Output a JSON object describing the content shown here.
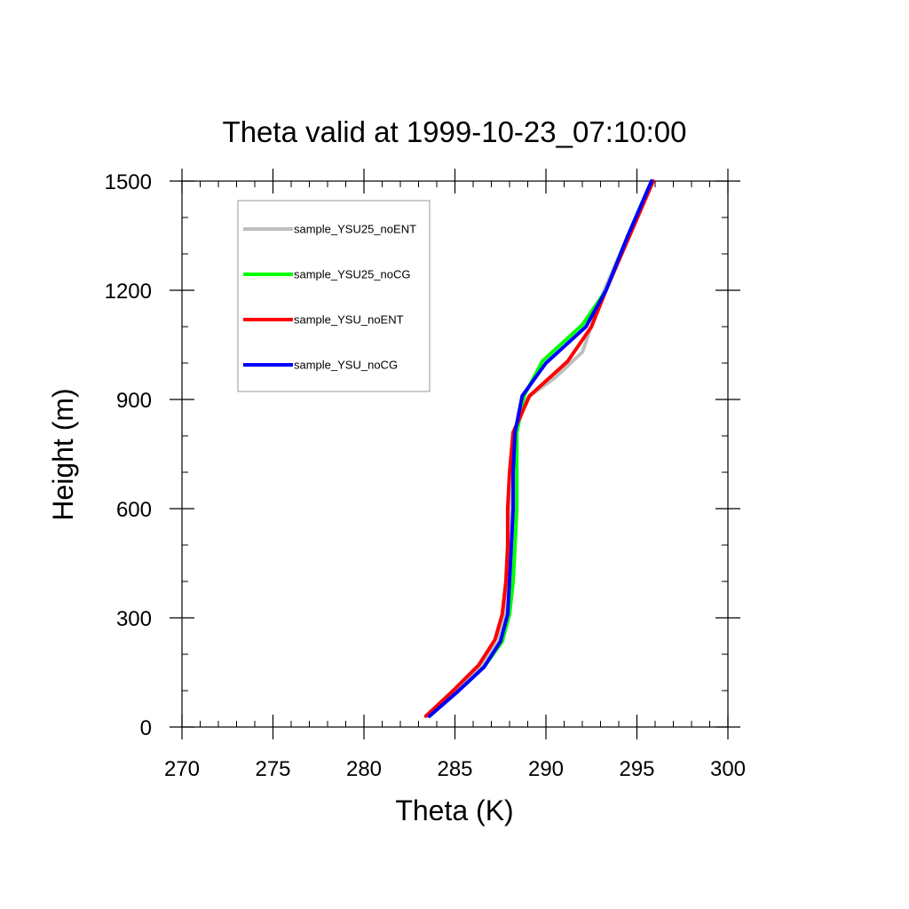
{
  "chart_data": {
    "type": "line",
    "title": "Theta valid at 1999-10-23_07:10:00",
    "xlabel": "Theta (K)",
    "ylabel": "Height (m)",
    "xlim": [
      270,
      300
    ],
    "ylim": [
      0,
      1500
    ],
    "xticks": [
      270,
      275,
      280,
      285,
      290,
      295,
      300
    ],
    "yticks": [
      0,
      300,
      600,
      900,
      1200,
      1500
    ],
    "x_minor_step": 1,
    "y_minor_step": 100,
    "grid": false,
    "legend_position": "top-left",
    "series": [
      {
        "name": "sample_YSU25_noENT",
        "color": "#bebebe",
        "points": [
          [
            283.5,
            30
          ],
          [
            285.0,
            95
          ],
          [
            286.4,
            165
          ],
          [
            287.4,
            235
          ],
          [
            287.7,
            310
          ],
          [
            287.9,
            400
          ],
          [
            288.0,
            500
          ],
          [
            288.0,
            600
          ],
          [
            288.1,
            700
          ],
          [
            288.3,
            810
          ],
          [
            289.0,
            905
          ],
          [
            290.5,
            960
          ],
          [
            292.0,
            1030
          ],
          [
            293.2,
            1200
          ],
          [
            294.5,
            1350
          ],
          [
            295.8,
            1500
          ]
        ]
      },
      {
        "name": "sample_YSU25_noCG",
        "color": "#00ff00",
        "points": [
          [
            283.6,
            30
          ],
          [
            285.1,
            95
          ],
          [
            286.6,
            165
          ],
          [
            287.6,
            235
          ],
          [
            288.0,
            310
          ],
          [
            288.2,
            400
          ],
          [
            288.3,
            500
          ],
          [
            288.4,
            600
          ],
          [
            288.4,
            700
          ],
          [
            288.4,
            810
          ],
          [
            288.8,
            910
          ],
          [
            289.8,
            1005
          ],
          [
            292.0,
            1105
          ],
          [
            293.3,
            1200
          ],
          [
            294.5,
            1350
          ],
          [
            295.8,
            1500
          ]
        ]
      },
      {
        "name": "sample_YSU_noENT",
        "color": "#ff0000",
        "points": [
          [
            283.4,
            30
          ],
          [
            284.9,
            100
          ],
          [
            286.3,
            170
          ],
          [
            287.2,
            240
          ],
          [
            287.6,
            310
          ],
          [
            287.8,
            400
          ],
          [
            287.9,
            500
          ],
          [
            287.9,
            600
          ],
          [
            288.0,
            700
          ],
          [
            288.2,
            810
          ],
          [
            289.1,
            910
          ],
          [
            291.2,
            1005
          ],
          [
            292.5,
            1100
          ],
          [
            293.3,
            1200
          ],
          [
            294.6,
            1350
          ],
          [
            295.9,
            1500
          ]
        ]
      },
      {
        "name": "sample_YSU_noCG",
        "color": "#0000ff",
        "points": [
          [
            283.6,
            30
          ],
          [
            285.1,
            95
          ],
          [
            286.6,
            165
          ],
          [
            287.5,
            235
          ],
          [
            287.9,
            310
          ],
          [
            288.0,
            400
          ],
          [
            288.1,
            500
          ],
          [
            288.2,
            600
          ],
          [
            288.2,
            700
          ],
          [
            288.3,
            810
          ],
          [
            288.7,
            910
          ],
          [
            290.0,
            1000
          ],
          [
            292.2,
            1100
          ],
          [
            293.3,
            1200
          ],
          [
            294.5,
            1350
          ],
          [
            295.8,
            1500
          ]
        ]
      }
    ]
  }
}
